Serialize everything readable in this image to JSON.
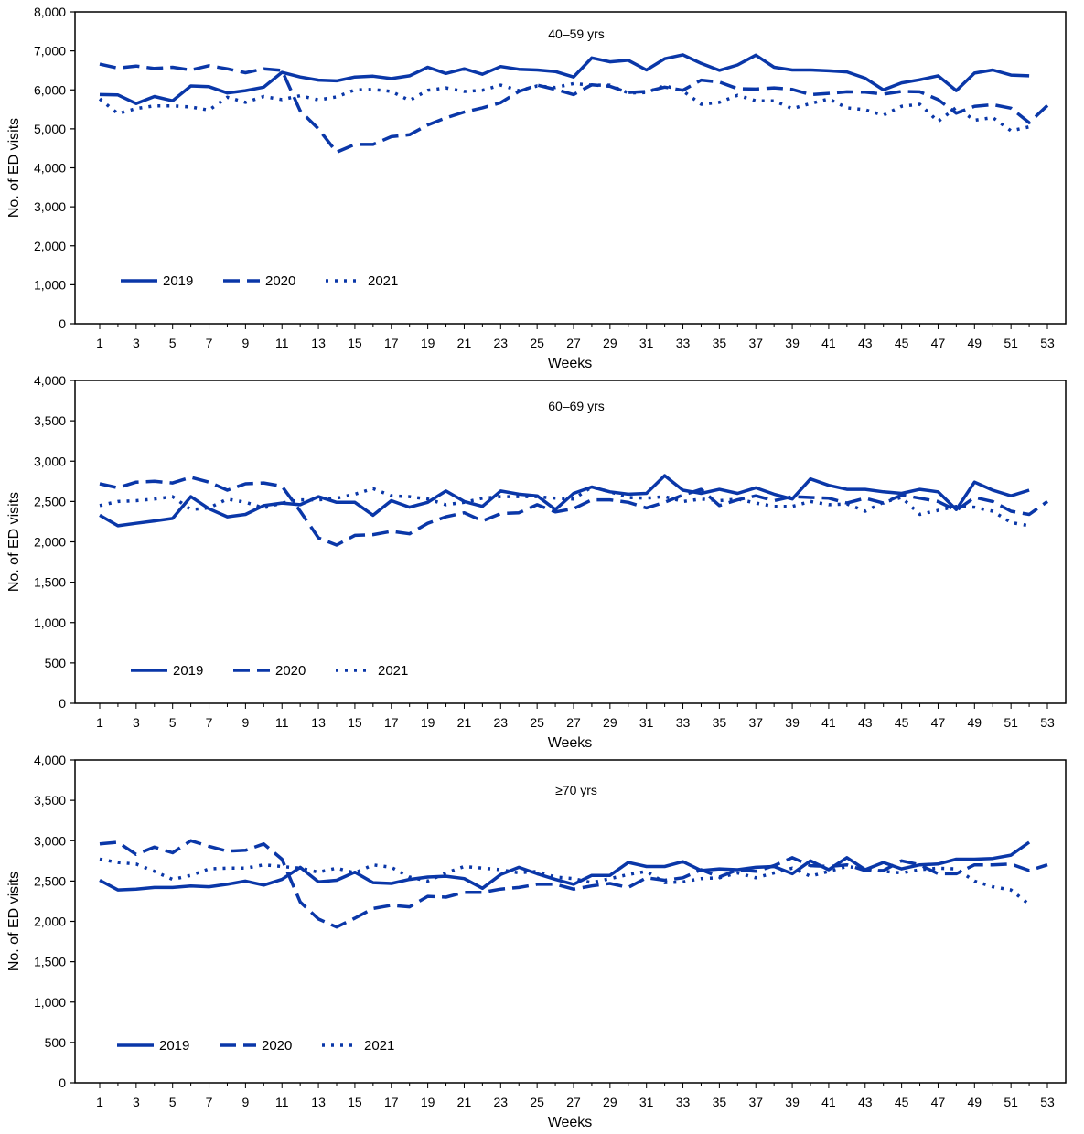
{
  "chart_data": [
    {
      "type": "line",
      "title": "40–59 yrs",
      "xlabel": "Weeks",
      "ylabel": "No. of ED visits",
      "ylim": [
        0,
        8000
      ],
      "yticks": [
        "0",
        "1,000",
        "2,000",
        "3,000",
        "4,000",
        "5,000",
        "6,000",
        "7,000",
        "8,000"
      ],
      "ytick_values": [
        0,
        1000,
        2000,
        3000,
        4000,
        5000,
        6000,
        7000,
        8000
      ],
      "xlim": [
        0,
        54
      ],
      "xticks": [
        1,
        3,
        5,
        7,
        9,
        11,
        13,
        15,
        17,
        19,
        21,
        23,
        25,
        27,
        29,
        31,
        33,
        35,
        37,
        39,
        41,
        43,
        45,
        47,
        49,
        51,
        53
      ],
      "legend": "bottom-left",
      "grid": false,
      "series": [
        {
          "name": "2019",
          "style": "solid",
          "values": [
            5880,
            5870,
            5650,
            5830,
            5720,
            6100,
            6080,
            5920,
            5980,
            6070,
            6450,
            6330,
            6250,
            6230,
            6330,
            6350,
            6290,
            6360,
            6580,
            6420,
            6540,
            6400,
            6600,
            6530,
            6510,
            6470,
            6330,
            6820,
            6720,
            6760,
            6510,
            6800,
            6900,
            6680,
            6500,
            6640,
            6890,
            6580,
            6510,
            6510,
            6490,
            6460,
            6300,
            6000,
            6180,
            6260,
            6360,
            5980,
            6430,
            6510,
            6380,
            6360
          ]
        },
        {
          "name": "2020",
          "style": "dashed",
          "values": [
            6660,
            6560,
            6610,
            6550,
            6580,
            6510,
            6620,
            6540,
            6440,
            6540,
            6500,
            5460,
            5000,
            4400,
            4600,
            4600,
            4800,
            4850,
            5100,
            5280,
            5430,
            5540,
            5670,
            5960,
            6120,
            6010,
            5880,
            6130,
            6090,
            5930,
            5960,
            6070,
            5990,
            6250,
            6200,
            6030,
            6020,
            6050,
            6010,
            5880,
            5910,
            5950,
            5940,
            5890,
            5960,
            5950,
            5750,
            5400,
            5580,
            5620,
            5530,
            5160,
            5600
          ]
        },
        {
          "name": "2021",
          "style": "dotted",
          "values": [
            5770,
            5390,
            5520,
            5590,
            5590,
            5560,
            5480,
            5810,
            5680,
            5830,
            5750,
            5850,
            5740,
            5820,
            6000,
            6010,
            5960,
            5730,
            5990,
            6050,
            5960,
            5990,
            6120,
            5980,
            6100,
            6060,
            6160,
            6120,
            6120,
            5920,
            5930,
            6110,
            5970,
            5630,
            5680,
            5860,
            5720,
            5720,
            5520,
            5650,
            5770,
            5540,
            5490,
            5350,
            5580,
            5630,
            5190,
            5550,
            5220,
            5290,
            4950,
            5050
          ]
        }
      ]
    },
    {
      "type": "line",
      "title": "60–69 yrs",
      "xlabel": "Weeks",
      "ylabel": "No. of ED visits",
      "ylim": [
        0,
        4000
      ],
      "yticks": [
        "0",
        "500",
        "1,000",
        "1,500",
        "2,000",
        "2,500",
        "3,000",
        "3,500",
        "4,000"
      ],
      "ytick_values": [
        0,
        500,
        1000,
        1500,
        2000,
        2500,
        3000,
        3500,
        4000
      ],
      "xlim": [
        0,
        54
      ],
      "xticks": [
        1,
        3,
        5,
        7,
        9,
        11,
        13,
        15,
        17,
        19,
        21,
        23,
        25,
        27,
        29,
        31,
        33,
        35,
        37,
        39,
        41,
        43,
        45,
        47,
        49,
        51,
        53
      ],
      "legend": "bottom-left",
      "grid": false,
      "series": [
        {
          "name": "2019",
          "style": "solid",
          "values": [
            2330,
            2200,
            2230,
            2260,
            2290,
            2560,
            2410,
            2310,
            2340,
            2450,
            2480,
            2460,
            2560,
            2490,
            2490,
            2330,
            2510,
            2430,
            2490,
            2630,
            2500,
            2440,
            2630,
            2590,
            2570,
            2400,
            2600,
            2680,
            2620,
            2590,
            2600,
            2820,
            2640,
            2600,
            2650,
            2600,
            2670,
            2590,
            2530,
            2780,
            2700,
            2650,
            2650,
            2620,
            2600,
            2650,
            2620,
            2400,
            2740,
            2640,
            2570,
            2640
          ]
        },
        {
          "name": "2020",
          "style": "dashed",
          "values": [
            2720,
            2670,
            2740,
            2750,
            2730,
            2800,
            2740,
            2640,
            2720,
            2730,
            2690,
            2380,
            2050,
            1960,
            2080,
            2090,
            2130,
            2100,
            2230,
            2310,
            2360,
            2260,
            2350,
            2360,
            2460,
            2370,
            2410,
            2520,
            2520,
            2490,
            2420,
            2490,
            2580,
            2650,
            2450,
            2520,
            2570,
            2510,
            2560,
            2550,
            2540,
            2480,
            2540,
            2480,
            2580,
            2540,
            2500,
            2390,
            2550,
            2500,
            2380,
            2340,
            2500
          ]
        },
        {
          "name": "2021",
          "style": "dotted",
          "values": [
            2450,
            2500,
            2510,
            2530,
            2560,
            2400,
            2420,
            2530,
            2490,
            2420,
            2480,
            2520,
            2520,
            2540,
            2590,
            2660,
            2570,
            2560,
            2530,
            2460,
            2490,
            2540,
            2560,
            2560,
            2560,
            2540,
            2530,
            2680,
            2620,
            2550,
            2540,
            2560,
            2500,
            2530,
            2510,
            2530,
            2480,
            2440,
            2440,
            2500,
            2460,
            2470,
            2380,
            2490,
            2550,
            2340,
            2390,
            2440,
            2430,
            2380,
            2240,
            2200
          ]
        }
      ]
    },
    {
      "type": "line",
      "title": "≥70 yrs",
      "xlabel": "Weeks",
      "ylabel": "No. of ED visits",
      "ylim": [
        0,
        4000
      ],
      "yticks": [
        "0",
        "500",
        "1,000",
        "1,500",
        "2,000",
        "2,500",
        "3,000",
        "3,500",
        "4,000"
      ],
      "ytick_values": [
        0,
        500,
        1000,
        1500,
        2000,
        2500,
        3000,
        3500,
        4000
      ],
      "xlim": [
        0,
        54
      ],
      "xticks": [
        1,
        3,
        5,
        7,
        9,
        11,
        13,
        15,
        17,
        19,
        21,
        23,
        25,
        27,
        29,
        31,
        33,
        35,
        37,
        39,
        41,
        43,
        45,
        47,
        49,
        51,
        53
      ],
      "legend": "bottom-left",
      "grid": false,
      "series": [
        {
          "name": "2019",
          "style": "solid",
          "values": [
            2510,
            2390,
            2400,
            2420,
            2420,
            2440,
            2430,
            2460,
            2500,
            2450,
            2520,
            2670,
            2490,
            2510,
            2610,
            2480,
            2470,
            2520,
            2550,
            2560,
            2530,
            2410,
            2580,
            2670,
            2590,
            2520,
            2460,
            2570,
            2570,
            2730,
            2680,
            2680,
            2740,
            2630,
            2650,
            2640,
            2670,
            2680,
            2590,
            2750,
            2640,
            2790,
            2640,
            2730,
            2650,
            2700,
            2710,
            2770,
            2770,
            2780,
            2820,
            2980
          ]
        },
        {
          "name": "2020",
          "style": "dashed",
          "values": [
            2960,
            2980,
            2830,
            2920,
            2850,
            3000,
            2930,
            2870,
            2880,
            2960,
            2770,
            2240,
            2030,
            1930,
            2040,
            2160,
            2200,
            2180,
            2310,
            2300,
            2360,
            2360,
            2400,
            2420,
            2460,
            2460,
            2400,
            2440,
            2470,
            2420,
            2540,
            2510,
            2540,
            2640,
            2550,
            2640,
            2620,
            2690,
            2790,
            2690,
            2680,
            2700,
            2630,
            2630,
            2750,
            2700,
            2590,
            2590,
            2700,
            2700,
            2710,
            2630,
            2700
          ]
        },
        {
          "name": "2021",
          "style": "dotted",
          "values": [
            2770,
            2730,
            2710,
            2620,
            2520,
            2570,
            2650,
            2660,
            2660,
            2700,
            2680,
            2660,
            2610,
            2660,
            2600,
            2700,
            2670,
            2550,
            2500,
            2600,
            2680,
            2660,
            2640,
            2600,
            2620,
            2550,
            2530,
            2480,
            2530,
            2580,
            2620,
            2480,
            2490,
            2530,
            2540,
            2600,
            2540,
            2600,
            2660,
            2560,
            2620,
            2680,
            2650,
            2620,
            2600,
            2640,
            2660,
            2650,
            2500,
            2430,
            2390,
            2210
          ]
        }
      ]
    }
  ],
  "colors": {
    "line": "#0a37a8",
    "axis": "#000000"
  }
}
